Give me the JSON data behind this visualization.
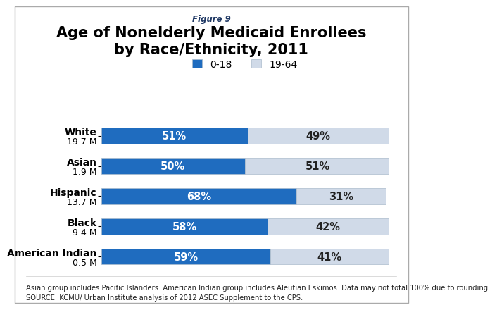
{
  "figure_label": "Figure 9",
  "title": "Age of Nonelderly Medicaid Enrollees\nby Race/Ethnicity, 2011",
  "cat_names": [
    "White",
    "Asian",
    "Hispanic",
    "Black",
    "American Indian"
  ],
  "cat_sizes": [
    "19.7 M",
    "1.9 M",
    "13.7 M",
    "9.4 M",
    "0.5 M"
  ],
  "values_0_18": [
    51,
    50,
    68,
    58,
    59
  ],
  "values_19_64": [
    49,
    51,
    31,
    42,
    41
  ],
  "color_0_18": "#1F6CBF",
  "color_19_64": "#D0DAE8",
  "bar_edge_color": "#AABBCC",
  "legend_labels": [
    "0-18",
    "19-64"
  ],
  "bar_height": 0.52,
  "xlim": [
    0,
    100
  ],
  "footer_line1": "Asian group includes Pacific Islanders. American Indian group includes Aleutian Eskimos. Data may not total 100% due to rounding.",
  "footer_line2": "SOURCE: KCMU/ Urban Institute analysis of 2012 ASEC Supplement to the CPS.",
  "background_color": "#FFFFFF",
  "title_fontsize": 15,
  "bar_label_fontsize": 10.5,
  "tick_name_fontsize": 10,
  "tick_size_fontsize": 9,
  "figure_label_fontsize": 8.5,
  "footer_fontsize": 7.2,
  "legend_fontsize": 10
}
